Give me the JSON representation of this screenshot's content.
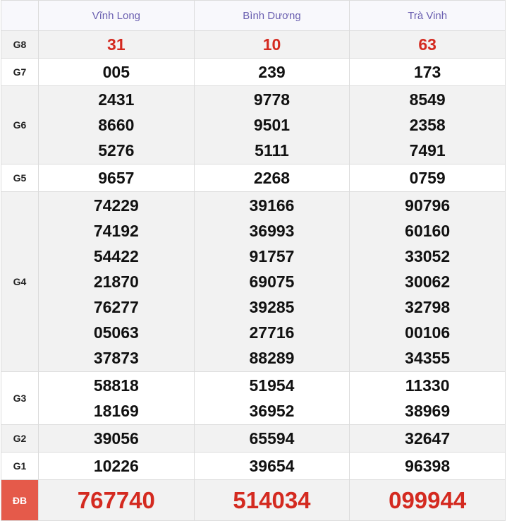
{
  "table": {
    "header": [
      "Vĩnh Long",
      "Bình Dương",
      "Trà Vinh"
    ],
    "rows": [
      {
        "label": "G8",
        "cells": [
          [
            "31"
          ],
          [
            "10"
          ],
          [
            "63"
          ]
        ]
      },
      {
        "label": "G7",
        "cells": [
          [
            "005"
          ],
          [
            "239"
          ],
          [
            "173"
          ]
        ]
      },
      {
        "label": "G6",
        "cells": [
          [
            "2431",
            "8660",
            "5276"
          ],
          [
            "9778",
            "9501",
            "5111"
          ],
          [
            "8549",
            "2358",
            "7491"
          ]
        ]
      },
      {
        "label": "G5",
        "cells": [
          [
            "9657"
          ],
          [
            "2268"
          ],
          [
            "0759"
          ]
        ]
      },
      {
        "label": "G4",
        "cells": [
          [
            "74229",
            "74192",
            "54422",
            "21870",
            "76277",
            "05063",
            "37873"
          ],
          [
            "39166",
            "36993",
            "91757",
            "69075",
            "39285",
            "27716",
            "88289"
          ],
          [
            "90796",
            "60160",
            "33052",
            "30062",
            "32798",
            "00106",
            "34355"
          ]
        ]
      },
      {
        "label": "G3",
        "cells": [
          [
            "58818",
            "18169"
          ],
          [
            "51954",
            "36952"
          ],
          [
            "11330",
            "38969"
          ]
        ]
      },
      {
        "label": "G2",
        "cells": [
          [
            "39056"
          ],
          [
            "65594"
          ],
          [
            "32647"
          ]
        ]
      },
      {
        "label": "G1",
        "cells": [
          [
            "10226"
          ],
          [
            "39654"
          ],
          [
            "96398"
          ]
        ]
      },
      {
        "label": "ĐB",
        "cells": [
          [
            "767740"
          ],
          [
            "514034"
          ],
          [
            "099944"
          ]
        ]
      }
    ]
  }
}
